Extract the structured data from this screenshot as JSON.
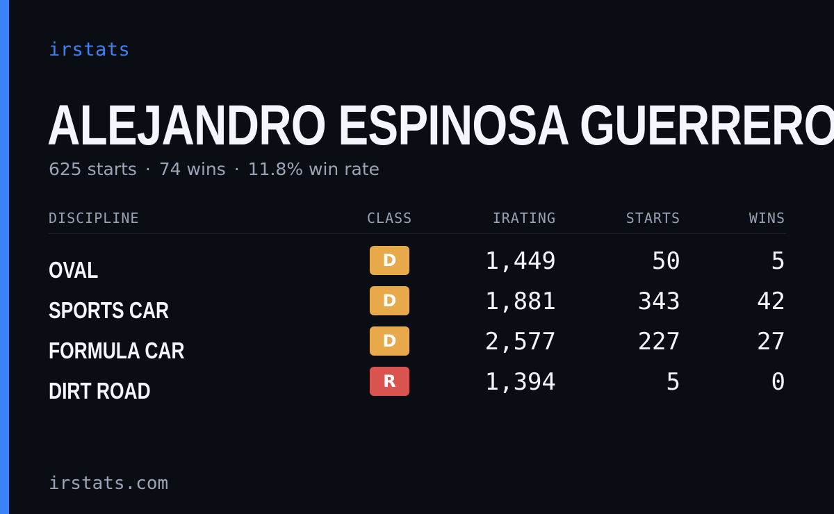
{
  "brand": "irstats",
  "driver": {
    "name": "ALEJANDRO ESPINOSA GUERRERO",
    "starts_text": "625 starts",
    "wins_text": "74 wins",
    "win_rate_text": "11.8% win rate",
    "separator": "·"
  },
  "table": {
    "headers": {
      "discipline": "DISCIPLINE",
      "class": "CLASS",
      "irating": "IRATING",
      "starts": "STARTS",
      "wins": "WINS"
    },
    "rows": [
      {
        "discipline": "OVAL",
        "class": "D",
        "class_color": "#e8a94a",
        "irating": "1,449",
        "starts": "50",
        "wins": "5"
      },
      {
        "discipline": "SPORTS CAR",
        "class": "D",
        "class_color": "#e8a94a",
        "irating": "1,881",
        "starts": "343",
        "wins": "42"
      },
      {
        "discipline": "FORMULA CAR",
        "class": "D",
        "class_color": "#e8a94a",
        "irating": "2,577",
        "starts": "227",
        "wins": "27"
      },
      {
        "discipline": "DIRT ROAD",
        "class": "R",
        "class_color": "#d9534f",
        "irating": "1,394",
        "starts": "5",
        "wins": "0"
      }
    ]
  },
  "footer": "irstats.com",
  "colors": {
    "accent": "#3b82f6",
    "background": "#0b0d14",
    "class_d": "#e8a94a",
    "class_r": "#d9534f"
  }
}
